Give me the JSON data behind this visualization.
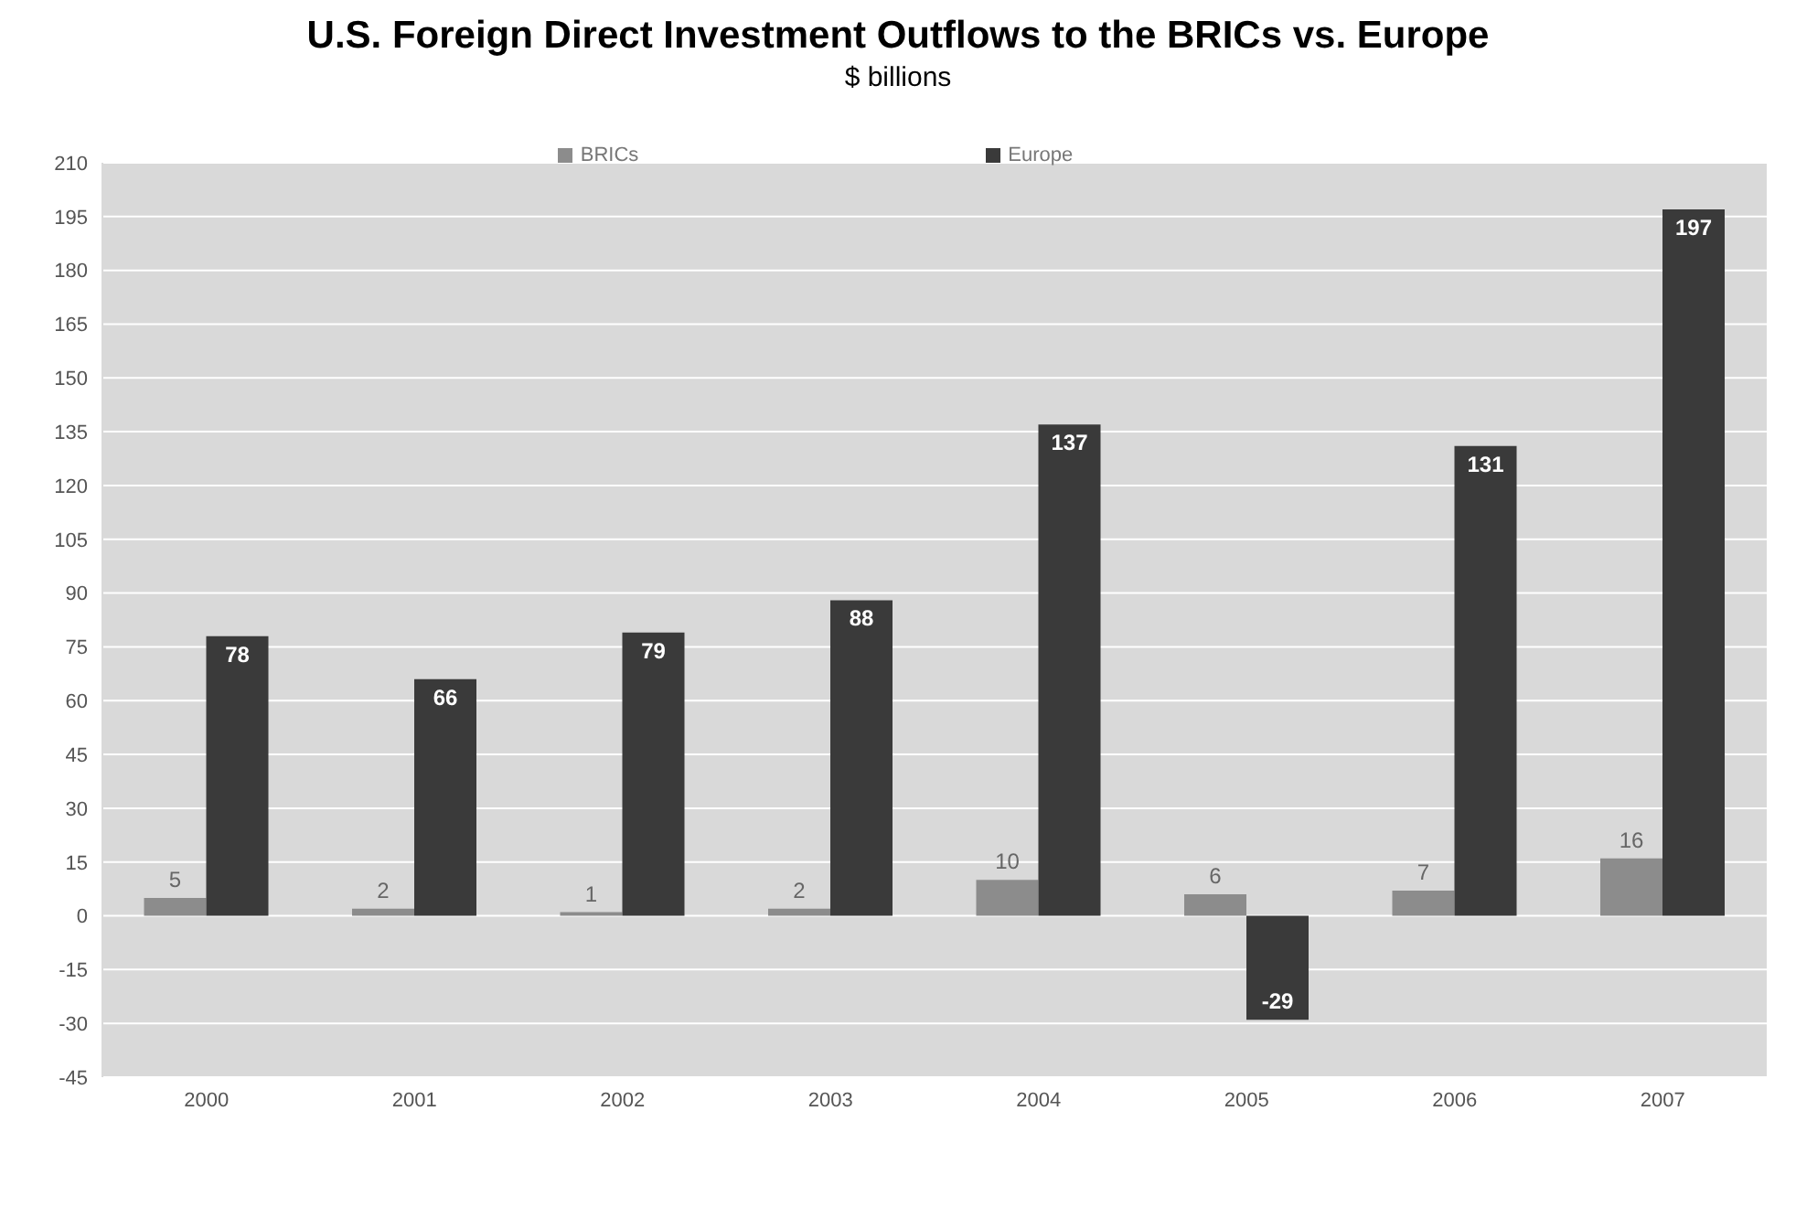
{
  "chart_data": {
    "type": "bar",
    "title": "U.S. Foreign Direct Investment Outflows to the BRICs vs. Europe",
    "subtitle": "$ billions",
    "categories": [
      "2000",
      "2001",
      "2002",
      "2003",
      "2004",
      "2005",
      "2006",
      "2007"
    ],
    "series": [
      {
        "name": "BRICs",
        "color": "#8c8c8c",
        "values": [
          5,
          2,
          1,
          2,
          10,
          6,
          7,
          16
        ]
      },
      {
        "name": "Europe",
        "color": "#3a3a3a",
        "values": [
          78,
          66,
          79,
          88,
          137,
          -29,
          131,
          197
        ]
      }
    ],
    "ylim": [
      -45,
      210
    ],
    "yticks": [
      -45,
      -30,
      -15,
      0,
      15,
      30,
      45,
      60,
      75,
      90,
      105,
      120,
      135,
      150,
      165,
      180,
      195,
      210
    ],
    "grid": "y",
    "legend": "top",
    "data_labels": true
  }
}
